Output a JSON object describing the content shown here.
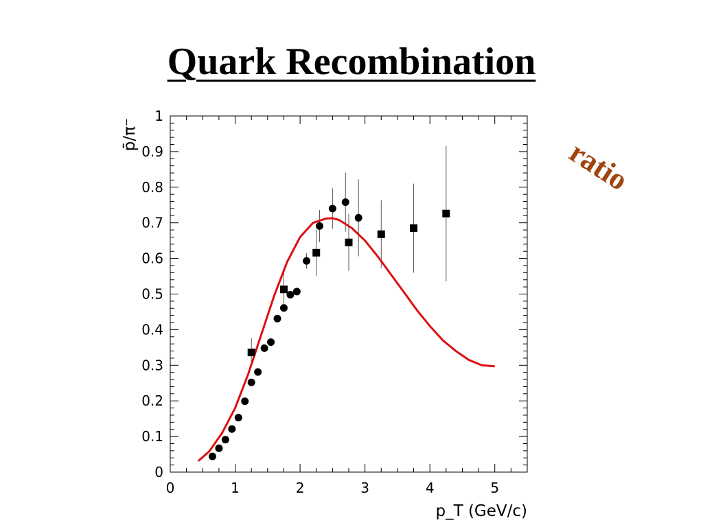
{
  "slide": {
    "title": "Quark Recombination",
    "side_label": "ratio",
    "side_label_color": "#a0450e"
  },
  "chart_data": {
    "type": "scatter",
    "xlabel": "p_T (GeV/c)",
    "ylabel": "p̄/π⁻",
    "xlim": [
      0,
      5.5
    ],
    "ylim": [
      0,
      1
    ],
    "x_ticks": [
      0,
      1,
      2,
      3,
      4,
      5
    ],
    "y_ticks": [
      0,
      0.1,
      0.2,
      0.3,
      0.4,
      0.5,
      0.6,
      0.7,
      0.8,
      0.9,
      1
    ],
    "grid": false,
    "series": [
      {
        "marker": "circle",
        "color": "#000000",
        "points": [
          {
            "x": 0.65,
            "y": 0.044
          },
          {
            "x": 0.75,
            "y": 0.067
          },
          {
            "x": 0.85,
            "y": 0.091
          },
          {
            "x": 0.95,
            "y": 0.121
          },
          {
            "x": 1.05,
            "y": 0.153
          },
          {
            "x": 1.15,
            "y": 0.199
          },
          {
            "x": 1.25,
            "y": 0.252
          },
          {
            "x": 1.35,
            "y": 0.281
          },
          {
            "x": 1.45,
            "y": 0.348
          },
          {
            "x": 1.55,
            "y": 0.365
          },
          {
            "x": 1.65,
            "y": 0.431
          },
          {
            "x": 1.75,
            "y": 0.461
          },
          {
            "x": 1.85,
            "y": 0.498
          },
          {
            "x": 1.95,
            "y": 0.507
          },
          {
            "x": 2.1,
            "y": 0.593,
            "err": 0.022
          },
          {
            "x": 2.3,
            "y": 0.691,
            "err": 0.045
          },
          {
            "x": 2.5,
            "y": 0.74,
            "err": 0.057
          },
          {
            "x": 2.7,
            "y": 0.758,
            "err": 0.083
          },
          {
            "x": 2.9,
            "y": 0.714,
            "err": 0.108
          }
        ]
      },
      {
        "marker": "square",
        "color": "#000000",
        "points": [
          {
            "x": 1.25,
            "y": 0.336,
            "err": 0.04
          },
          {
            "x": 1.75,
            "y": 0.513,
            "err": 0.055
          },
          {
            "x": 2.25,
            "y": 0.616,
            "err": 0.065
          },
          {
            "x": 2.75,
            "y": 0.645,
            "err": 0.08
          },
          {
            "x": 3.25,
            "y": 0.668,
            "err": 0.095
          },
          {
            "x": 3.75,
            "y": 0.685,
            "err": 0.125
          },
          {
            "x": 4.25,
            "y": 0.726,
            "err": 0.19
          }
        ]
      }
    ],
    "curve": {
      "type": "line",
      "color": "#dd1111",
      "x": [
        0.43,
        0.6,
        0.8,
        1.0,
        1.2,
        1.4,
        1.6,
        1.8,
        2.0,
        2.2,
        2.4,
        2.5,
        2.6,
        2.8,
        3.0,
        3.2,
        3.4,
        3.6,
        3.8,
        4.0,
        4.2,
        4.4,
        4.6,
        4.8,
        5.0
      ],
      "y": [
        0.031,
        0.058,
        0.11,
        0.18,
        0.275,
        0.385,
        0.495,
        0.59,
        0.66,
        0.7,
        0.712,
        0.713,
        0.708,
        0.685,
        0.65,
        0.605,
        0.555,
        0.505,
        0.455,
        0.41,
        0.37,
        0.34,
        0.315,
        0.3,
        0.297
      ]
    }
  }
}
